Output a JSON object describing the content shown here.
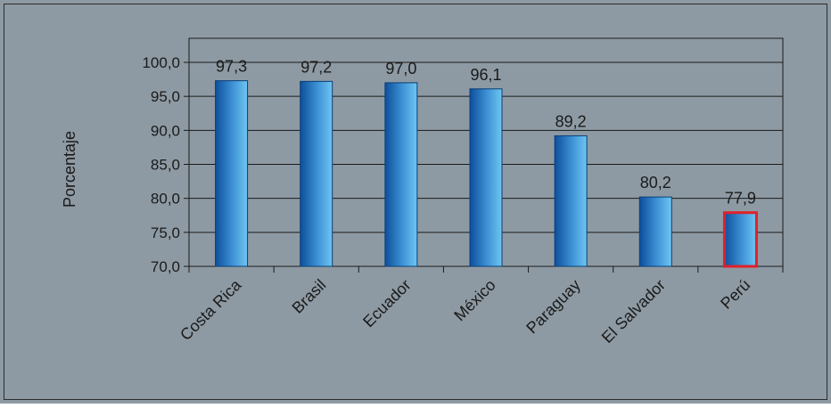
{
  "chart_data": {
    "type": "bar",
    "ylabel": "Porcentaje",
    "xlabel": "",
    "title": "",
    "ylim": [
      70,
      100
    ],
    "yticks": [
      "100,0",
      "95,0",
      "90,0",
      "85,0",
      "80,0",
      "75,0",
      "70,0"
    ],
    "ytick_values": [
      100,
      95,
      90,
      85,
      80,
      75,
      70
    ],
    "categories": [
      "Costa Rica",
      "Brasil",
      "Ecuador",
      "México",
      "Paraguay",
      "El Salvador",
      "Perú"
    ],
    "values": [
      97.3,
      97.2,
      97.0,
      96.1,
      89.2,
      80.2,
      77.9
    ],
    "value_labels": [
      "97,3",
      "97,2",
      "97,0",
      "96,1",
      "89,2",
      "80,2",
      "77,9"
    ],
    "highlighted_category": "Perú",
    "grid": true,
    "colors": {
      "background": "#8e9aa3",
      "bar_dark": "#0d4f9c",
      "bar_light": "#6ec6f0",
      "highlight_border": "#e0202c",
      "gridline": "#1a1a1a"
    }
  }
}
